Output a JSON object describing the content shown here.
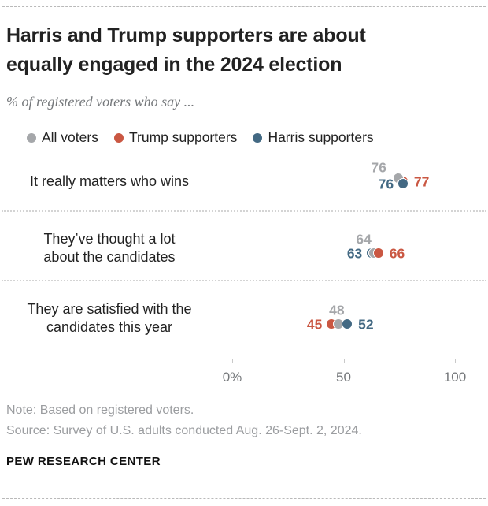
{
  "header": {
    "title_lines": [
      "Harris and Trump supporters are about",
      "equally engaged in the 2024 election"
    ],
    "subtitle": "% of registered voters who say ..."
  },
  "legend": [
    {
      "series": "all",
      "label": "All voters",
      "color": "#a5a7aa"
    },
    {
      "series": "trump",
      "label": "Trump supporters",
      "color": "#ca5742"
    },
    {
      "series": "harris",
      "label": "Harris supporters",
      "color": "#436983"
    }
  ],
  "chart_data": {
    "type": "dot-plot",
    "title": "Harris and Trump supporters are about equally engaged in the 2024 election",
    "subtitle": "% of registered voters who say ...",
    "unit": "% of registered voters",
    "xlim": [
      0,
      100
    ],
    "x_ticks": [
      {
        "value": 0,
        "label": "0%"
      },
      {
        "value": 50,
        "label": "50"
      },
      {
        "value": 100,
        "label": "100"
      }
    ],
    "series_colors": {
      "all": "#a5a7aa",
      "trump": "#ca5742",
      "harris": "#436983"
    },
    "rows": [
      {
        "label": "It really matters who wins",
        "label_lines": [
          "It really matters who wins"
        ],
        "values": {
          "all": 76,
          "trump": 77,
          "harris": 76
        },
        "points": [
          {
            "series": "trump",
            "value": 77,
            "label_side": "right"
          },
          {
            "series": "all",
            "value": 76,
            "label_side": "above",
            "nudge": [
              -3,
              -4
            ],
            "label_dx": -12,
            "label_dy": 4
          },
          {
            "series": "harris",
            "value": 76,
            "label_side": "left",
            "nudge": [
              3,
              3
            ]
          }
        ]
      },
      {
        "label": "They’ve thought a lot about the candidates",
        "label_lines": [
          "They’ve thought a lot",
          "about the candidates"
        ],
        "values": {
          "all": 64,
          "trump": 66,
          "harris": 63
        },
        "points": [
          {
            "series": "harris",
            "value": 63,
            "label_side": "left"
          },
          {
            "series": "all",
            "value": 64,
            "label_side": "above"
          },
          {
            "series": "trump",
            "value": 66,
            "label_side": "right"
          }
        ]
      },
      {
        "label": "They are satisfied with the candidates this year",
        "label_lines": [
          "They are satisfied with the",
          "candidates this year"
        ],
        "values": {
          "all": 48,
          "trump": 45,
          "harris": 52
        },
        "points": [
          {
            "series": "trump",
            "value": 45,
            "label_side": "left"
          },
          {
            "series": "all",
            "value": 48,
            "label_side": "above",
            "label_dx": 11
          },
          {
            "series": "harris",
            "value": 52,
            "label_side": "right"
          }
        ]
      }
    ]
  },
  "footer": {
    "note": "Note: Based on registered voters.",
    "source": "Source: Survey of U.S. adults conducted Aug. 26-Sept. 2, 2024.",
    "brand": "PEW RESEARCH CENTER"
  }
}
